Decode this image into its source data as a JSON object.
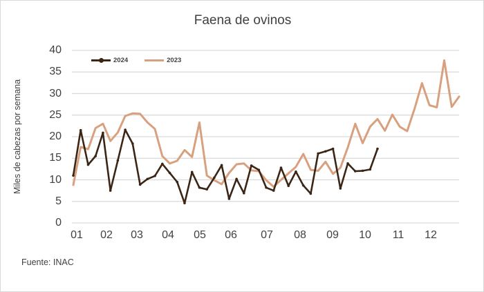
{
  "title": "Faena de ovinos",
  "source_note": "Fuente: INAC",
  "colors": {
    "series_2024": "#3b2515",
    "series_2023": "#d8a07e",
    "gridline": "#dadada",
    "text": "#404040",
    "border": "#d9d9d9"
  },
  "legend": [
    {
      "label": "2024",
      "color": "#3b2515",
      "marker": "circle-marker"
    },
    {
      "label": "2023",
      "color": "#d8a07e",
      "marker": "none"
    }
  ],
  "chart_data": {
    "type": "line",
    "title": "Faena de ovinos",
    "xlabel": "",
    "ylabel": "Miles de cabezas por semana",
    "x_unit": "semana (weekly points)",
    "xticklabels": [
      "01",
      "02",
      "03",
      "04",
      "05",
      "06",
      "07",
      "08",
      "09",
      "10",
      "11",
      "12"
    ],
    "yticks": [
      0,
      5,
      10,
      15,
      20,
      25,
      30,
      35,
      40
    ],
    "ylim": [
      0,
      40
    ],
    "grid": "horizontal-only",
    "legend_position": "top-left-inside",
    "series": [
      {
        "name": "2024",
        "color": "#3b2515",
        "has_markers": true,
        "values": [
          11.0,
          21.5,
          13.5,
          15.5,
          20.9,
          7.5,
          14.5,
          21.6,
          18.4,
          8.9,
          10.2,
          10.9,
          13.7,
          11.6,
          9.5,
          4.6,
          11.8,
          8.2,
          7.8,
          10.5,
          13.4,
          5.6,
          10.2,
          6.9,
          13.3,
          12.3,
          8.2,
          7.5,
          12.8,
          8.6,
          11.9,
          8.7,
          6.8,
          16.1,
          16.6,
          17.2,
          8.0,
          13.8,
          12.0,
          12.1,
          12.4,
          17.2
        ]
      },
      {
        "name": "2023",
        "color": "#d8a07e",
        "has_markers": false,
        "values": [
          8.8,
          17.6,
          17.1,
          22.0,
          23.0,
          19.0,
          21.0,
          24.8,
          25.4,
          25.3,
          23.3,
          21.8,
          15.5,
          13.8,
          14.4,
          16.9,
          15.3,
          23.3,
          11.0,
          9.9,
          9.0,
          11.6,
          13.6,
          13.8,
          12.2,
          12.0,
          9.9,
          8.4,
          10.0,
          11.5,
          13.0,
          16.0,
          12.3,
          12.1,
          14.2,
          11.4,
          12.8,
          17.5,
          23.0,
          18.5,
          22.3,
          24.1,
          21.4,
          25.1,
          22.3,
          21.3,
          26.5,
          32.4,
          27.3,
          26.8,
          37.7,
          26.9,
          29.3
        ]
      }
    ]
  }
}
